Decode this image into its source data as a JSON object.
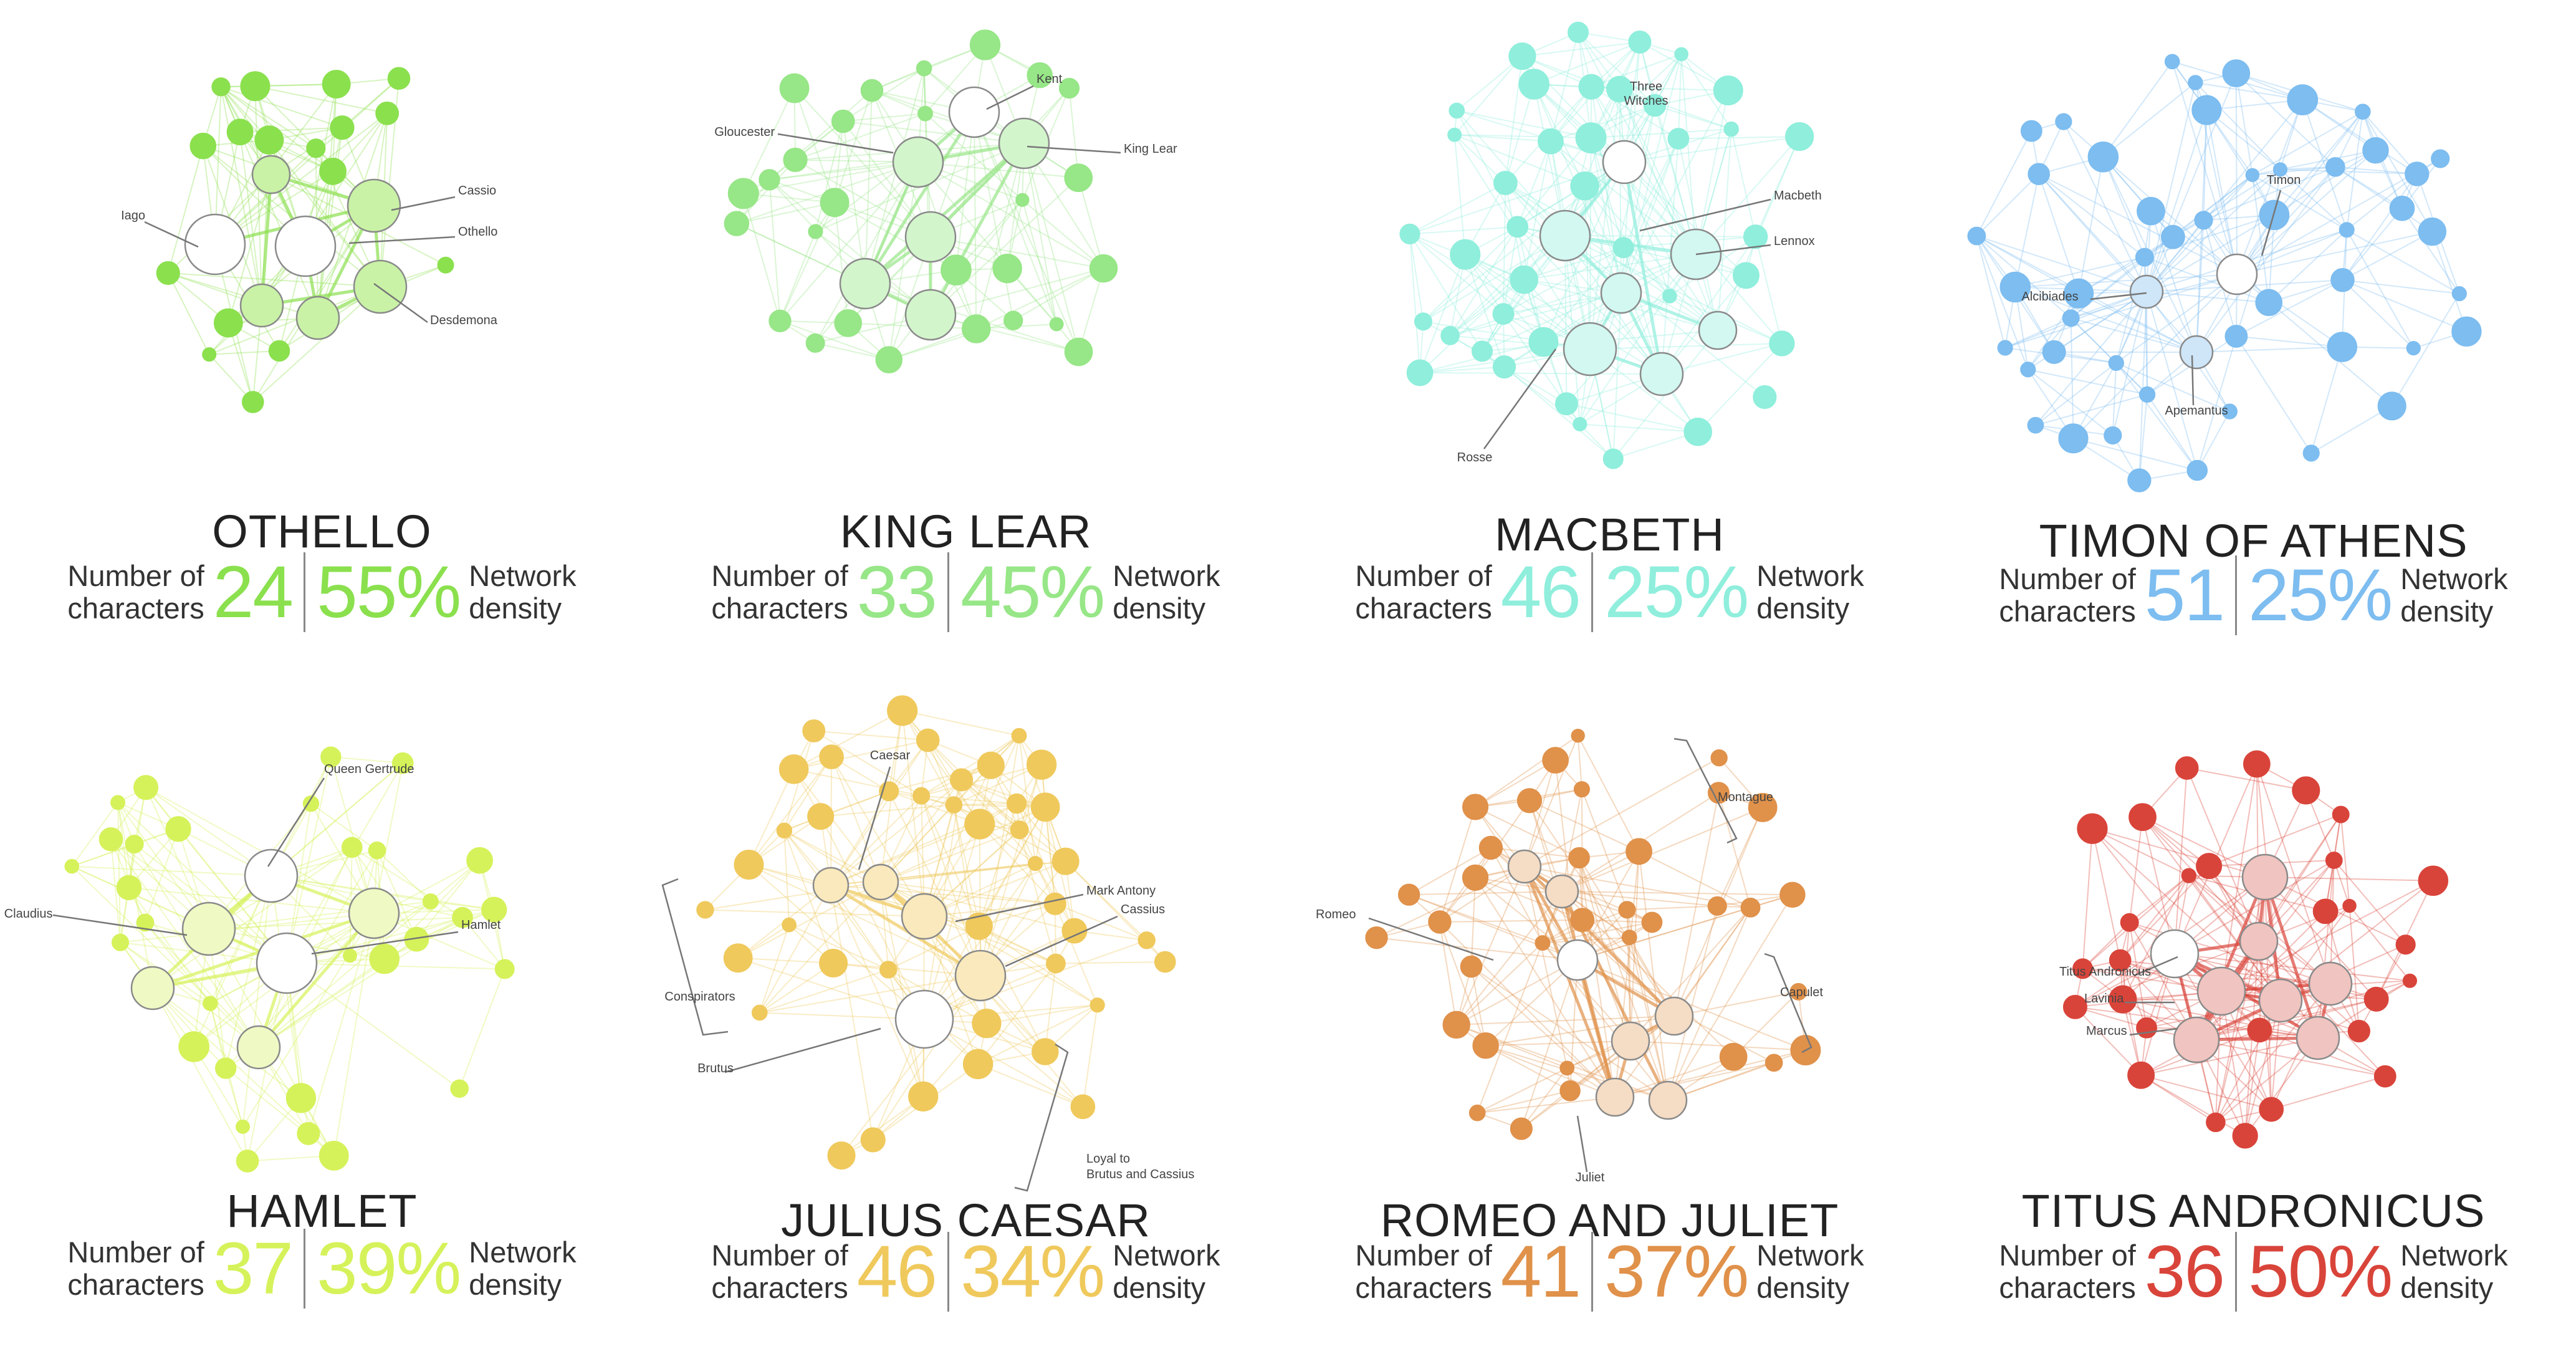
{
  "panels": [
    {
      "id": "othello",
      "title": "OTHELLO",
      "characters": "24",
      "density": "55%",
      "count_label": [
        "Number of",
        "characters"
      ],
      "density_label": [
        "Network",
        "density"
      ],
      "color": "#8BE04E",
      "light": "#C9F2A6",
      "labels": [
        "Cassio",
        "Iago",
        "Othello",
        "Desdemona"
      ]
    },
    {
      "id": "kinglear",
      "title": "KING LEAR",
      "characters": "33",
      "density": "45%",
      "count_label": [
        "Number of",
        "characters"
      ],
      "density_label": [
        "Network",
        "density"
      ],
      "color": "#97E687",
      "light": "#D3F5CC",
      "labels": [
        "Kent",
        "Gloucester",
        "King Lear"
      ]
    },
    {
      "id": "macbeth",
      "title": "MACBETH",
      "characters": "46",
      "density": "25%",
      "count_label": [
        "Number of",
        "characters"
      ],
      "density_label": [
        "Network",
        "density"
      ],
      "color": "#8FEEDC",
      "light": "#D2F8F1",
      "labels": [
        "Three",
        "Witches",
        "Macbeth",
        "Lennox",
        "Rosse"
      ]
    },
    {
      "id": "timon",
      "title": "TIMON OF ATHENS",
      "characters": "51",
      "density": "25%",
      "count_label": [
        "Number of",
        "characters"
      ],
      "density_label": [
        "Network",
        "density"
      ],
      "color": "#7DBDF0",
      "light": "#CFE6F9",
      "labels": [
        "Timon",
        "Alcibiades",
        "Apemantus"
      ]
    },
    {
      "id": "hamlet",
      "title": "HAMLET",
      "characters": "37",
      "density": "39%",
      "count_label": [
        "Number of",
        "characters"
      ],
      "density_label": [
        "Network",
        "density"
      ],
      "color": "#D5F25A",
      "light": "#EFF9C4",
      "labels": [
        "Queen Gertrude",
        "g Claudius",
        "Hamlet"
      ]
    },
    {
      "id": "caesar",
      "title": "JULIUS CAESAR",
      "characters": "46",
      "density": "34%",
      "count_label": [
        "Number of",
        "characters"
      ],
      "density_label": [
        "Network",
        "density"
      ],
      "color": "#EFC95C",
      "light": "#F9E9BC",
      "labels": [
        "Caesar",
        "Mark Antony",
        "Cassius",
        "Conspirators",
        "Brutus",
        "Loyal to",
        "Brutus and Cassius"
      ]
    },
    {
      "id": "romeo",
      "title": "ROMEO AND JULIET",
      "characters": "41",
      "density": "37%",
      "count_label": [
        "Number of",
        "characters"
      ],
      "density_label": [
        "Network",
        "density"
      ],
      "color": "#E0914A",
      "light": "#F5DCC4",
      "labels": [
        "Montague",
        "Romeo",
        "Capulet",
        "Juliet"
      ]
    },
    {
      "id": "titus",
      "title": "TITUS ANDRONICUS",
      "characters": "36",
      "density": "50%",
      "count_label": [
        "Number of",
        "characters"
      ],
      "density_label": [
        "Network",
        "density"
      ],
      "color": "#D9443A",
      "light": "#F0C4C0",
      "labels": [
        "Titus Andronicus",
        "Lavinia",
        "Marcus"
      ]
    }
  ]
}
